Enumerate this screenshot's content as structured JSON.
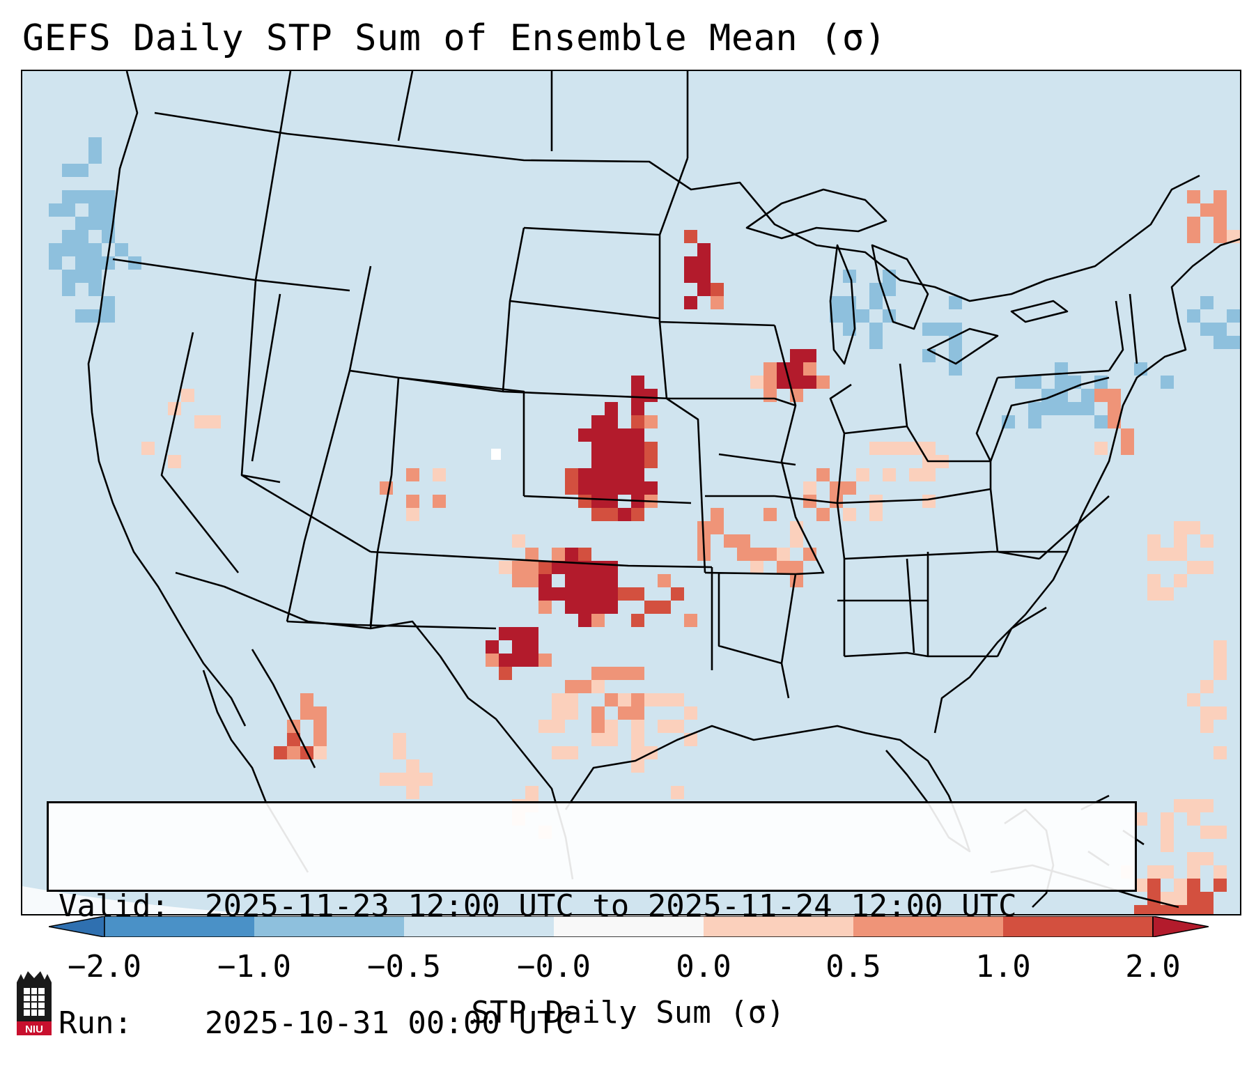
{
  "title": "GEFS Daily STP Sum of Ensemble Mean (σ)",
  "info": {
    "valid_label": "Valid:",
    "valid_value": "2025-11-23 12:00 UTC to 2025-11-24 12:00 UTC",
    "run_label": "Run:",
    "run_value": "2025-10-31 00:00 UTC"
  },
  "colorbar": {
    "label": "STP Daily Sum (σ)",
    "ticks": [
      "−2.0",
      "−1.0",
      "−0.5",
      "−0.0",
      "0.0",
      "0.5",
      "1.0",
      "2.0"
    ],
    "colors": [
      "#2f70b0",
      "#4a91c7",
      "#8ec0dd",
      "#d0e4ef",
      "#f8f8f8",
      "#fbd0bc",
      "#ef9478",
      "#d3503f",
      "#b31b2c"
    ],
    "extend": "both"
  },
  "map": {
    "projection": "Lambert Conformal",
    "region": "CONUS",
    "background_color": "#d0e4ef"
  },
  "logo": {
    "text": "NIU"
  }
}
